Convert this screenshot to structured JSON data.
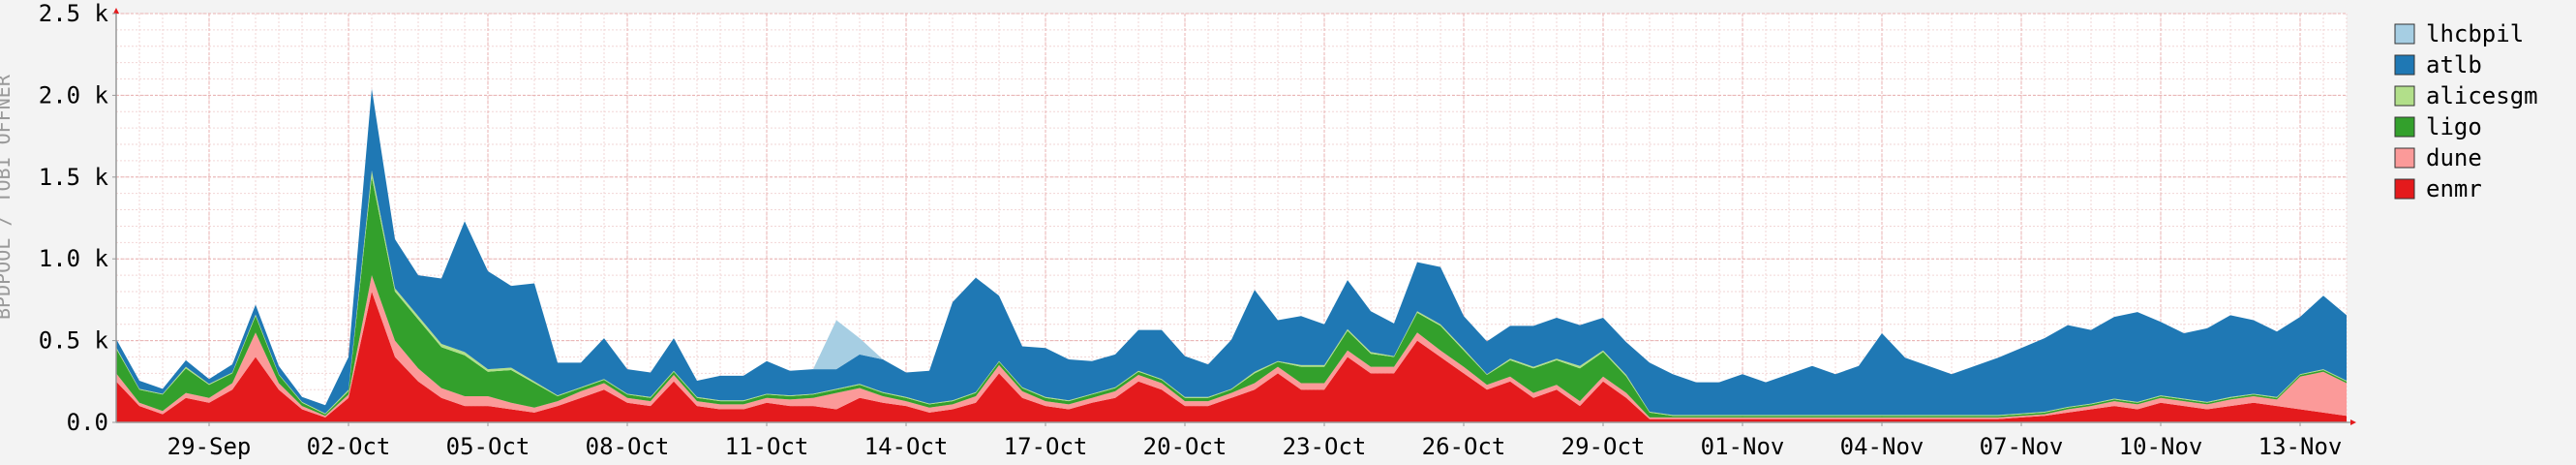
{
  "chart_data": {
    "type": "area",
    "stacked": true,
    "ylabel": "BPDPOOL / TOBI OFFNER",
    "ylim": [
      0,
      2500
    ],
    "yticks": [
      {
        "value": 0,
        "label": "0.0"
      },
      {
        "value": 500,
        "label": "0.5 k"
      },
      {
        "value": 1000,
        "label": "1.0 k"
      },
      {
        "value": 1500,
        "label": "1.5 k"
      },
      {
        "value": 2000,
        "label": "2.0 k"
      },
      {
        "value": 2500,
        "label": "2.5 k"
      }
    ],
    "xlim_days": [
      0,
      48
    ],
    "xticks": [
      {
        "day": 2,
        "label": "29-Sep"
      },
      {
        "day": 5,
        "label": "02-Oct"
      },
      {
        "day": 8,
        "label": "05-Oct"
      },
      {
        "day": 11,
        "label": "08-Oct"
      },
      {
        "day": 14,
        "label": "11-Oct"
      },
      {
        "day": 17,
        "label": "14-Oct"
      },
      {
        "day": 20,
        "label": "17-Oct"
      },
      {
        "day": 23,
        "label": "20-Oct"
      },
      {
        "day": 26,
        "label": "23-Oct"
      },
      {
        "day": 29,
        "label": "26-Oct"
      },
      {
        "day": 32,
        "label": "29-Oct"
      },
      {
        "day": 35,
        "label": "01-Nov"
      },
      {
        "day": 38,
        "label": "04-Nov"
      },
      {
        "day": 41,
        "label": "07-Nov"
      },
      {
        "day": 44,
        "label": "10-Nov"
      },
      {
        "day": 47,
        "label": "13-Nov"
      }
    ],
    "grid": true,
    "legend_position": "right",
    "x": [
      0,
      0.5,
      1,
      1.5,
      2,
      2.5,
      3,
      3.5,
      4,
      4.5,
      5,
      5.5,
      6,
      6.5,
      7,
      7.5,
      8,
      8.5,
      9,
      9.5,
      10,
      10.5,
      11,
      11.5,
      12,
      12.5,
      13,
      13.5,
      14,
      14.5,
      15,
      15.5,
      16,
      16.5,
      17,
      17.5,
      18,
      18.5,
      19,
      19.5,
      20,
      20.5,
      21,
      21.5,
      22,
      22.5,
      23,
      23.5,
      24,
      24.5,
      25,
      25.5,
      26,
      26.5,
      27,
      27.5,
      28,
      28.5,
      29,
      29.5,
      30,
      30.5,
      31,
      31.5,
      32,
      32.5,
      33,
      33.5,
      34,
      34.5,
      35,
      35.5,
      36,
      36.5,
      37,
      37.5,
      38,
      38.5,
      39,
      39.5,
      40,
      40.5,
      41,
      41.5,
      42,
      42.5,
      43,
      43.5,
      44,
      44.5,
      45,
      45.5,
      46,
      46.5,
      47,
      47.5,
      48
    ],
    "series": [
      {
        "name": "enmr",
        "color": "#e41a1c",
        "values": [
          250,
          100,
          50,
          150,
          120,
          200,
          400,
          200,
          80,
          30,
          150,
          800,
          400,
          250,
          150,
          100,
          100,
          80,
          60,
          100,
          150,
          200,
          120,
          100,
          250,
          100,
          80,
          80,
          120,
          100,
          100,
          80,
          150,
          120,
          100,
          60,
          80,
          120,
          300,
          150,
          100,
          80,
          120,
          150,
          250,
          200,
          100,
          100,
          150,
          200,
          300,
          200,
          200,
          400,
          300,
          300,
          500,
          400,
          300,
          200,
          250,
          150,
          200,
          100,
          250,
          150,
          20,
          20,
          20,
          20,
          20,
          20,
          20,
          20,
          20,
          20,
          20,
          20,
          20,
          20,
          20,
          20,
          30,
          40,
          60,
          80,
          100,
          80,
          120,
          100,
          80,
          100,
          120,
          100,
          80,
          60,
          40
        ]
      },
      {
        "name": "dune",
        "color": "#fb9a99",
        "values": [
          50,
          20,
          20,
          30,
          30,
          40,
          150,
          40,
          20,
          10,
          20,
          100,
          100,
          80,
          60,
          60,
          60,
          40,
          30,
          30,
          40,
          40,
          30,
          30,
          40,
          30,
          30,
          30,
          30,
          40,
          50,
          100,
          60,
          40,
          30,
          30,
          30,
          40,
          50,
          40,
          30,
          30,
          30,
          40,
          40,
          40,
          30,
          30,
          30,
          40,
          40,
          40,
          40,
          40,
          40,
          40,
          50,
          40,
          40,
          30,
          30,
          30,
          30,
          30,
          30,
          30,
          10,
          10,
          10,
          10,
          10,
          10,
          10,
          10,
          10,
          10,
          10,
          10,
          10,
          10,
          10,
          10,
          10,
          10,
          20,
          20,
          30,
          30,
          30,
          30,
          30,
          40,
          40,
          40,
          200,
          250,
          200
        ]
      },
      {
        "name": "ligo",
        "color": "#33a02c",
        "values": [
          150,
          80,
          100,
          150,
          80,
          60,
          100,
          50,
          20,
          10,
          20,
          600,
          300,
          300,
          250,
          250,
          150,
          200,
          150,
          30,
          20,
          20,
          20,
          20,
          20,
          20,
          20,
          20,
          20,
          20,
          20,
          20,
          20,
          20,
          20,
          20,
          20,
          20,
          20,
          20,
          20,
          20,
          20,
          20,
          20,
          20,
          20,
          20,
          20,
          60,
          30,
          100,
          100,
          120,
          80,
          60,
          120,
          150,
          100,
          60,
          100,
          150,
          150,
          200,
          150,
          100,
          30,
          10,
          10,
          10,
          10,
          10,
          10,
          10,
          10,
          10,
          10,
          10,
          10,
          10,
          10,
          10,
          10,
          10,
          10,
          10,
          10,
          10,
          10,
          10,
          10,
          10,
          10,
          10,
          10,
          10,
          10
        ]
      },
      {
        "name": "alicesgm",
        "color": "#b2df8a",
        "values": [
          10,
          5,
          5,
          10,
          5,
          5,
          10,
          5,
          5,
          5,
          10,
          40,
          20,
          20,
          20,
          20,
          15,
          15,
          10,
          5,
          5,
          5,
          5,
          5,
          5,
          5,
          5,
          5,
          5,
          5,
          5,
          5,
          5,
          5,
          5,
          5,
          5,
          5,
          5,
          5,
          5,
          5,
          5,
          5,
          5,
          5,
          5,
          5,
          5,
          10,
          5,
          10,
          10,
          10,
          10,
          5,
          10,
          10,
          10,
          5,
          10,
          10,
          10,
          15,
          10,
          10,
          5,
          5,
          5,
          5,
          5,
          5,
          5,
          5,
          5,
          5,
          5,
          5,
          5,
          5,
          5,
          5,
          5,
          5,
          5,
          5,
          5,
          5,
          5,
          5,
          5,
          5,
          5,
          5,
          5,
          5,
          5
        ]
      },
      {
        "name": "atlb",
        "color": "#1f78b4",
        "values": [
          50,
          50,
          30,
          40,
          30,
          50,
          60,
          50,
          30,
          50,
          200,
          500,
          300,
          250,
          400,
          800,
          600,
          500,
          600,
          200,
          150,
          250,
          150,
          150,
          200,
          100,
          150,
          150,
          200,
          150,
          150,
          120,
          180,
          200,
          150,
          200,
          600,
          700,
          400,
          250,
          300,
          250,
          200,
          200,
          250,
          300,
          250,
          200,
          300,
          500,
          250,
          300,
          250,
          300,
          250,
          200,
          300,
          350,
          200,
          200,
          200,
          250,
          250,
          250,
          200,
          200,
          300,
          250,
          200,
          200,
          250,
          200,
          250,
          300,
          250,
          300,
          500,
          350,
          300,
          250,
          300,
          350,
          400,
          450,
          500,
          450,
          500,
          550,
          450,
          400,
          450,
          500,
          450,
          400,
          350,
          450,
          400
        ]
      },
      {
        "name": "lhcbpil",
        "color": "#a6cee3",
        "values": [
          0,
          0,
          0,
          0,
          0,
          0,
          0,
          0,
          0,
          0,
          0,
          0,
          0,
          0,
          0,
          0,
          0,
          0,
          0,
          0,
          0,
          0,
          0,
          0,
          0,
          0,
          0,
          0,
          0,
          0,
          0,
          300,
          100,
          0,
          0,
          0,
          0,
          0,
          0,
          0,
          0,
          0,
          0,
          0,
          0,
          0,
          0,
          0,
          0,
          0,
          0,
          0,
          0,
          0,
          0,
          0,
          0,
          0,
          0,
          0,
          0,
          0,
          0,
          0,
          0,
          0,
          0,
          0,
          0,
          0,
          0,
          0,
          0,
          0,
          0,
          0,
          0,
          0,
          0,
          0,
          0,
          0,
          0,
          0,
          0,
          0,
          0,
          0,
          0,
          0,
          0,
          0,
          0,
          0,
          0,
          0,
          0
        ]
      }
    ],
    "legend_order": [
      "lhcbpil",
      "atlb",
      "alicesgm",
      "ligo",
      "dune",
      "enmr"
    ]
  }
}
